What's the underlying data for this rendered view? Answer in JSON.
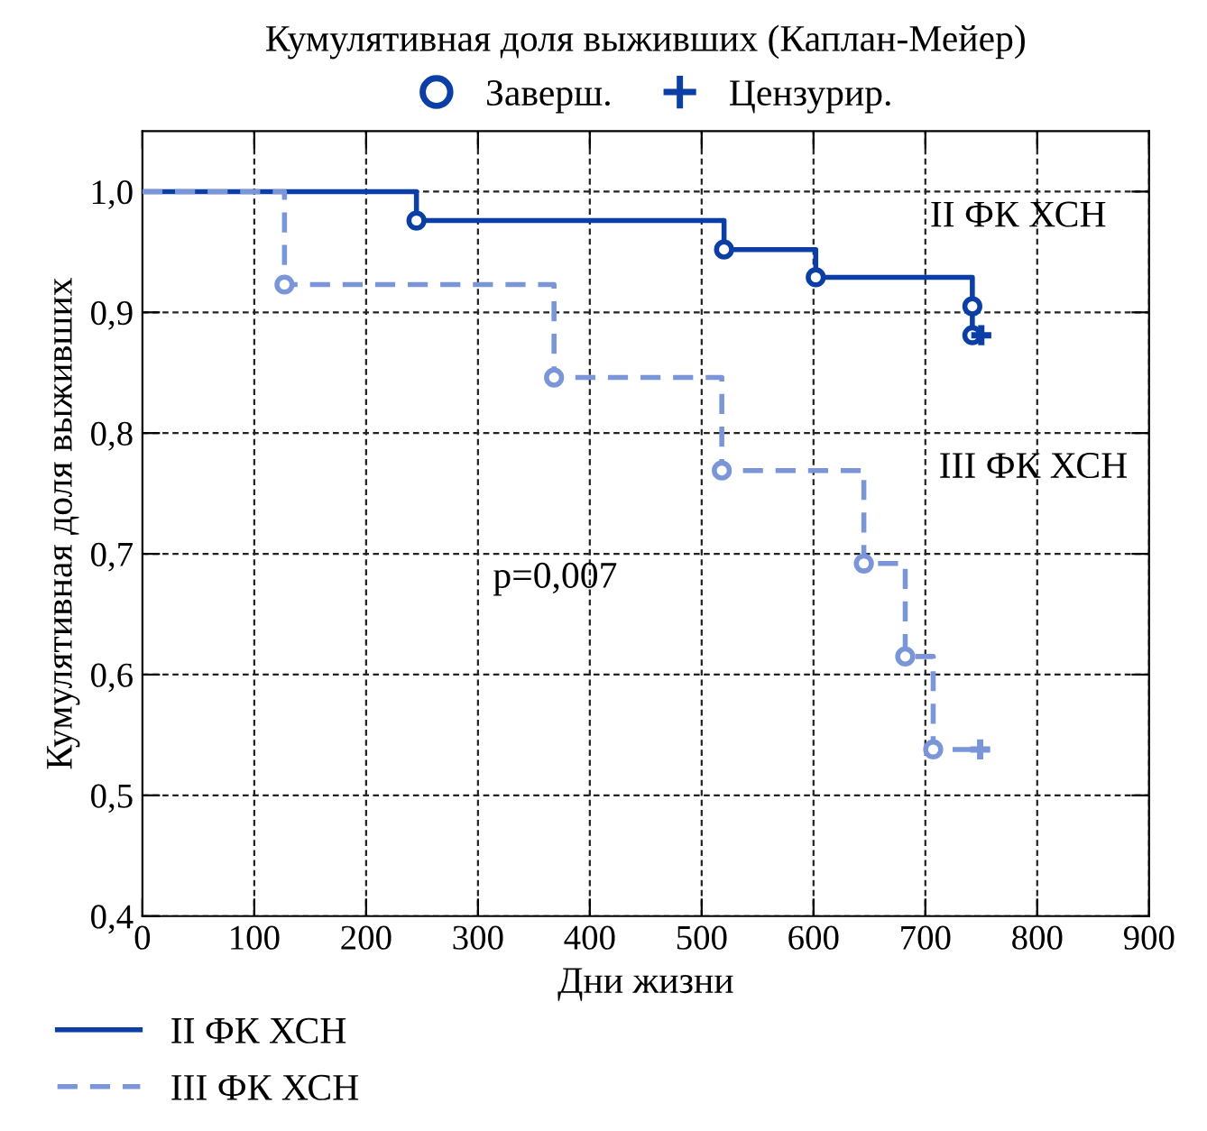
{
  "chart_data": {
    "type": "step",
    "title": "Кумулятивная доля выживших (Каплан-Мейер)",
    "xlabel": "Дни жизни",
    "ylabel": "Кумулятивная доля выживших",
    "xlim": [
      0,
      900
    ],
    "ylim": [
      0.4,
      1.05
    ],
    "xticks": [
      0,
      100,
      200,
      300,
      400,
      500,
      600,
      700,
      800,
      900
    ],
    "yticks": [
      {
        "value": 0.4,
        "label": "0,4"
      },
      {
        "value": 0.5,
        "label": "0,5"
      },
      {
        "value": 0.6,
        "label": "0,6"
      },
      {
        "value": 0.7,
        "label": "0,7"
      },
      {
        "value": 0.8,
        "label": "0,8"
      },
      {
        "value": 0.9,
        "label": "0,9"
      },
      {
        "value": 1.0,
        "label": "1,0"
      }
    ],
    "grid": true,
    "legend": "bottom left",
    "series": [
      {
        "name": "II ФК ХСН",
        "color": "#0b3fa6",
        "line_style": "solid",
        "marker": "circle",
        "x": [
          0,
          245,
          520,
          602,
          742,
          742,
          750
        ],
        "values": [
          1.0,
          0.976,
          0.952,
          0.929,
          0.905,
          0.881,
          0.881
        ]
      },
      {
        "name": "III ФК ХСН",
        "color": "#7b96d8",
        "line_style": "dashed",
        "marker": "circle",
        "x": [
          0,
          127,
          368,
          518,
          645,
          682,
          707,
          749
        ],
        "values": [
          1.0,
          0.923,
          0.846,
          0.769,
          0.692,
          0.615,
          0.538,
          0.538
        ]
      },
      {
        "type": "scatter",
        "color": "#0b3fa6",
        "marker": "cross",
        "x": [
          750
        ],
        "values": [
          0.881
        ]
      },
      {
        "type": "scatter",
        "color": "#7b96d8",
        "marker": "cross",
        "x": [
          749
        ],
        "values": [
          0.538
        ]
      }
    ],
    "annotations": [
      "Заверш.",
      "Цензурир.",
      "p=0,007",
      "II ФК ХСН",
      "III ФК ХСН"
    ]
  }
}
